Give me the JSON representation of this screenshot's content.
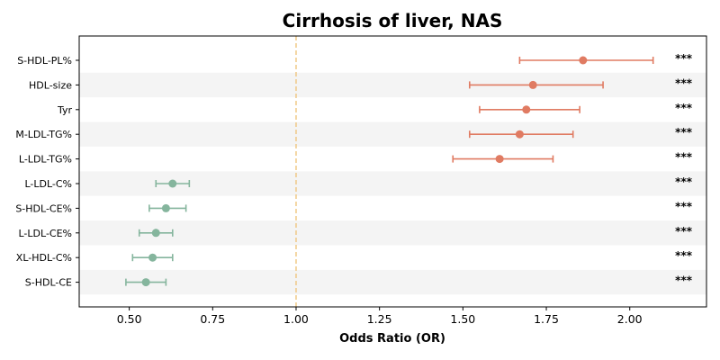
{
  "chart_data": {
    "type": "scatter",
    "subtype": "forest-plot",
    "title": "Cirrhosis of liver, NAS",
    "xlabel": "Odds Ratio (OR)",
    "ylabel": "",
    "xlim": [
      0.35,
      2.23
    ],
    "xticks": [
      "0.50",
      "0.75",
      "1.00",
      "1.25",
      "1.50",
      "1.75",
      "2.00"
    ],
    "xtick_values": [
      0.5,
      0.75,
      1.0,
      1.25,
      1.5,
      1.75,
      2.0
    ],
    "reference_line": 1.0,
    "colors": {
      "risk": "#e07b62",
      "protective": "#85b59d",
      "reference": "#f0c987",
      "band": "#f4f4f4"
    },
    "rows": [
      {
        "label": "S-HDL-PL%",
        "or": 1.86,
        "lower": 1.67,
        "upper": 2.07,
        "sig": "***",
        "group": "risk"
      },
      {
        "label": "HDL-size",
        "or": 1.71,
        "lower": 1.52,
        "upper": 1.92,
        "sig": "***",
        "group": "risk"
      },
      {
        "label": "Tyr",
        "or": 1.69,
        "lower": 1.55,
        "upper": 1.85,
        "sig": "***",
        "group": "risk"
      },
      {
        "label": "M-LDL-TG%",
        "or": 1.67,
        "lower": 1.52,
        "upper": 1.83,
        "sig": "***",
        "group": "risk"
      },
      {
        "label": "L-LDL-TG%",
        "or": 1.61,
        "lower": 1.47,
        "upper": 1.77,
        "sig": "***",
        "group": "risk"
      },
      {
        "label": "L-LDL-C%",
        "or": 0.63,
        "lower": 0.58,
        "upper": 0.68,
        "sig": "***",
        "group": "protective"
      },
      {
        "label": "S-HDL-CE%",
        "or": 0.61,
        "lower": 0.56,
        "upper": 0.67,
        "sig": "***",
        "group": "protective"
      },
      {
        "label": "L-LDL-CE%",
        "or": 0.58,
        "lower": 0.53,
        "upper": 0.63,
        "sig": "***",
        "group": "protective"
      },
      {
        "label": "XL-HDL-C%",
        "or": 0.57,
        "lower": 0.51,
        "upper": 0.63,
        "sig": "***",
        "group": "protective"
      },
      {
        "label": "S-HDL-CE",
        "or": 0.55,
        "lower": 0.49,
        "upper": 0.61,
        "sig": "***",
        "group": "protective"
      }
    ]
  }
}
